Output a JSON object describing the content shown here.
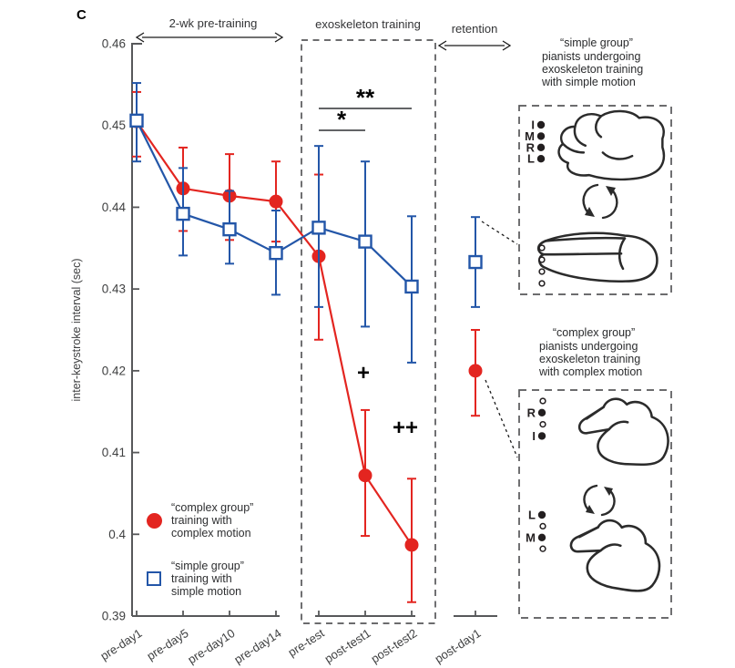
{
  "panel_label": "C",
  "colors": {
    "red": "#e32520",
    "blue": "#2356a8",
    "axis": "#57585a",
    "text": "#3f4041",
    "black": "#1a1a1a"
  },
  "sections": [
    {
      "label": "2-wk pre-training",
      "style": "double-arrow"
    },
    {
      "label": "exoskeleton training",
      "style": "dashed-box"
    },
    {
      "label": "retention",
      "style": "double-arrow"
    }
  ],
  "chart_data": {
    "type": "line",
    "title": "",
    "xlabel": "",
    "ylabel": "inter-keystroke interval (sec)",
    "ylim": [
      0.39,
      0.46
    ],
    "ytick_labels": [
      "0.46",
      "0.45",
      "0.44",
      "0.43",
      "0.42",
      "0.41",
      "0.4",
      "0.39"
    ],
    "ytick_values": [
      0.46,
      0.45,
      0.44,
      0.43,
      0.42,
      0.41,
      0.4,
      0.39
    ],
    "grid": false,
    "legend_position": "inside lower-left",
    "categories": [
      "pre-day1",
      "pre-day5",
      "pre-day10",
      "pre-day14",
      "pre-test",
      "post-test1",
      "post-test2",
      "post-day1"
    ],
    "series": [
      {
        "name": "“complex group” training with complex motion",
        "marker": "filled-circle",
        "color": "#e32520",
        "values": [
          0.4505,
          0.4423,
          0.4414,
          0.4407,
          0.434,
          0.4072,
          0.3987,
          0.42
        ],
        "err_hi": [
          0.4541,
          0.4473,
          0.4465,
          0.4456,
          0.444,
          0.4152,
          0.4068,
          0.425
        ],
        "err_lo": [
          0.4462,
          0.4371,
          0.436,
          0.4358,
          0.4238,
          0.3998,
          0.3917,
          0.4145
        ]
      },
      {
        "name": "“simple group” training with simple motion",
        "marker": "open-square",
        "color": "#2356a8",
        "values": [
          0.4506,
          0.4392,
          0.4373,
          0.4344,
          0.4375,
          0.4358,
          0.4303,
          0.4333
        ],
        "err_hi": [
          0.4552,
          0.4448,
          0.442,
          0.4396,
          0.4475,
          0.4456,
          0.4389,
          0.4388
        ],
        "err_lo": [
          0.4456,
          0.4341,
          0.4331,
          0.4293,
          0.4278,
          0.4254,
          0.421,
          0.4278
        ]
      }
    ],
    "annotations": [
      {
        "text": "**",
        "compares": [
          "pre-test",
          "post-test2"
        ]
      },
      {
        "text": "*",
        "compares": [
          "pre-test",
          "post-test1"
        ]
      },
      {
        "text": "+",
        "at": "post-test1"
      },
      {
        "text": "++",
        "at": "post-test2"
      }
    ]
  },
  "legend": {
    "items": [
      {
        "marker": "filled-circle",
        "color": "#e32520",
        "lines": [
          "“complex group”",
          "training with",
          "complex motion"
        ]
      },
      {
        "marker": "open-square",
        "color": "#2356a8",
        "lines": [
          "“simple group”",
          "training with",
          "simple motion"
        ]
      }
    ]
  },
  "right_panel": {
    "groups": [
      {
        "title": "“simple group”",
        "desc_lines": [
          "pianists undergoing",
          "exoskeleton training",
          "with simple motion"
        ],
        "hands": [
          {
            "pose": "clenched",
            "finger_marks": [
              {
                "label": "I",
                "filled": true
              },
              {
                "label": "M",
                "filled": true
              },
              {
                "label": "R",
                "filled": true
              },
              {
                "label": "L",
                "filled": true
              }
            ]
          },
          {
            "pose": "open",
            "finger_marks": [
              {
                "label": "",
                "filled": false
              },
              {
                "label": "",
                "filled": false
              },
              {
                "label": "",
                "filled": false
              },
              {
                "label": "",
                "filled": false
              }
            ]
          }
        ]
      },
      {
        "title": "“complex group”",
        "desc_lines": [
          "pianists undergoing",
          "exoskeleton training",
          "with complex motion"
        ],
        "hands": [
          {
            "pose": "mixed",
            "finger_marks": [
              {
                "label": "",
                "filled": false
              },
              {
                "label": "R",
                "filled": true
              },
              {
                "label": "",
                "filled": false
              },
              {
                "label": "I",
                "filled": true
              }
            ]
          },
          {
            "pose": "mixed",
            "finger_marks": [
              {
                "label": "L",
                "filled": true
              },
              {
                "label": "",
                "filled": false
              },
              {
                "label": "M",
                "filled": true
              },
              {
                "label": "",
                "filled": false
              }
            ]
          }
        ]
      }
    ]
  }
}
